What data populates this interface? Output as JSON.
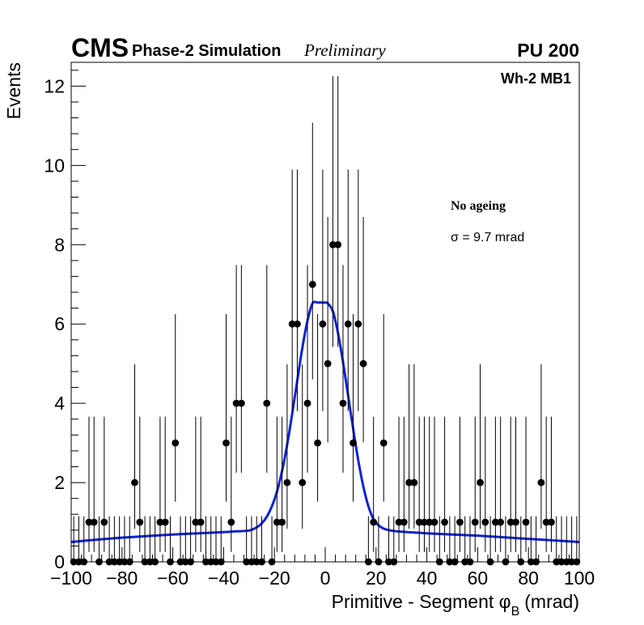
{
  "header": {
    "cms": "CMS",
    "phase": "Phase-2 Simulation",
    "preliminary": "Preliminary",
    "pileup": "PU 200"
  },
  "chart_data": {
    "type": "scatter",
    "title": "",
    "xlabel": "Primitive - Segment φ",
    "xlabel_sub": "B",
    "xlabel_unit": "(mrad)",
    "ylabel": "Events",
    "xlim": [
      -100,
      100
    ],
    "ylim": [
      0,
      12.6
    ],
    "x_ticks": [
      -100,
      -80,
      -60,
      -40,
      -20,
      0,
      20,
      40,
      60,
      80,
      100
    ],
    "x_tick_labels": [
      "−100",
      "−80",
      "−60",
      "−40",
      "−20",
      "0",
      "20",
      "40",
      "60",
      "80",
      "100"
    ],
    "y_ticks": [
      0,
      2,
      4,
      6,
      8,
      10,
      12
    ],
    "y_tick_labels": [
      "0",
      "2",
      "4",
      "6",
      "8",
      "10",
      "12"
    ],
    "grid": false,
    "bin_width": 2,
    "series": [
      {
        "name": "Wh-2 MB1",
        "style": "points-with-poisson-error-bars",
        "color": "#000000",
        "x": [
          -99,
          -97,
          -95,
          -93,
          -91,
          -89,
          -87,
          -85,
          -83,
          -81,
          -79,
          -77,
          -75,
          -73,
          -71,
          -69,
          -67,
          -65,
          -63,
          -61,
          -59,
          -57,
          -55,
          -53,
          -51,
          -49,
          -47,
          -45,
          -43,
          -41,
          -39,
          -37,
          -35,
          -33,
          -31,
          -29,
          -27,
          -25,
          -23,
          -21,
          -19,
          -17,
          -15,
          -13,
          -11,
          -9,
          -7,
          -5,
          -3,
          -1,
          1,
          3,
          5,
          7,
          9,
          11,
          13,
          15,
          17,
          19,
          21,
          23,
          25,
          27,
          29,
          31,
          33,
          35,
          37,
          39,
          41,
          43,
          45,
          47,
          49,
          51,
          53,
          55,
          57,
          59,
          61,
          63,
          65,
          67,
          69,
          71,
          73,
          75,
          77,
          79,
          81,
          83,
          85,
          87,
          89,
          91,
          93,
          95,
          97,
          99
        ],
        "y": [
          0,
          0,
          0,
          1,
          1,
          0,
          1,
          0,
          0,
          0,
          0,
          0,
          2,
          1,
          0,
          0,
          0,
          1,
          1,
          0,
          3,
          0,
          0,
          0,
          1,
          1,
          0,
          0,
          0,
          0,
          3,
          1,
          4,
          4,
          0,
          0,
          0,
          0,
          4,
          0,
          1,
          1,
          2,
          6,
          6,
          2,
          4,
          7,
          3,
          6,
          5,
          8,
          8,
          4,
          6,
          3,
          6,
          5,
          0,
          1,
          0,
          3,
          0,
          0,
          1,
          1,
          2,
          2,
          1,
          1,
          1,
          1,
          0,
          1,
          0,
          0,
          1,
          0,
          0,
          1,
          2,
          1,
          0,
          1,
          1,
          0,
          1,
          1,
          0,
          1,
          0,
          0,
          2,
          1,
          1,
          0,
          0,
          0,
          0,
          0
        ]
      },
      {
        "name": "fit",
        "style": "line",
        "color": "#0a22d6",
        "description": "Gaussian core + linear/pedestal tails, sigma = 9.7 mrad",
        "x": [
          -100,
          -90,
          -80,
          -70,
          -60,
          -50,
          -40,
          -35,
          -30,
          -27,
          -25,
          -23,
          -21,
          -19,
          -17,
          -15,
          -13,
          -11,
          -9,
          -7,
          -5,
          -3,
          -1,
          0,
          1,
          3,
          5,
          7,
          9,
          11,
          13,
          15,
          17,
          19,
          21,
          23,
          25,
          27,
          30,
          35,
          40,
          50,
          60,
          70,
          80,
          90,
          100
        ],
        "y": [
          0.5,
          0.56,
          0.61,
          0.65,
          0.69,
          0.72,
          0.75,
          0.77,
          0.79,
          0.87,
          0.97,
          1.14,
          1.4,
          1.77,
          2.29,
          2.95,
          3.74,
          4.58,
          5.4,
          6.08,
          6.52,
          6.54,
          6.54,
          6.54,
          6.52,
          6.32,
          5.78,
          5.04,
          4.2,
          3.35,
          2.56,
          1.9,
          1.4,
          1.08,
          0.92,
          0.84,
          0.8,
          0.78,
          0.76,
          0.74,
          0.72,
          0.69,
          0.66,
          0.62,
          0.58,
          0.54,
          0.5
        ]
      }
    ],
    "annotations": {
      "region": "Wh-2 MB1",
      "ageing": "No ageing",
      "sigma": "σ = 9.7 mrad"
    }
  }
}
